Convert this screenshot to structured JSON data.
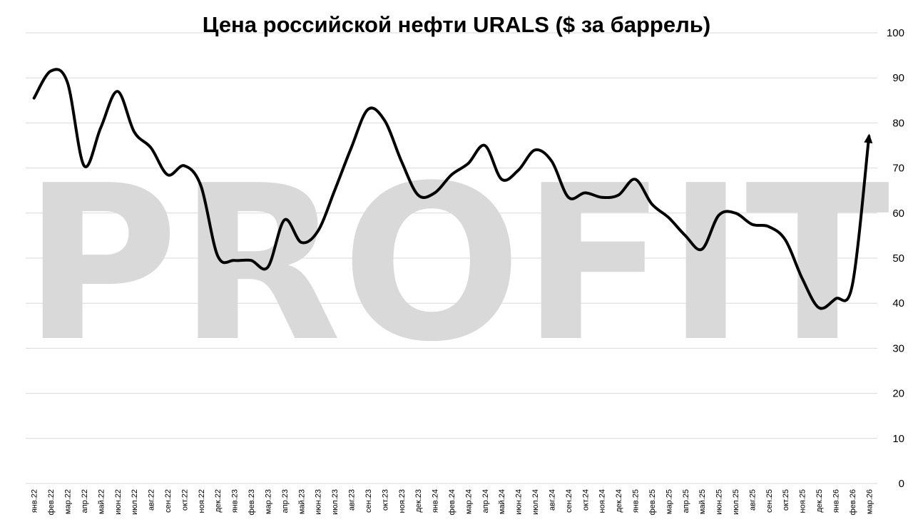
{
  "watermark_text": "PROFIT",
  "colors": {
    "line": "#000000",
    "grid": "#d9d9d9",
    "watermark": "#d9d9d9",
    "background": "#ffffff"
  },
  "chart_data": {
    "type": "line",
    "title": "Цена российской нефти URALS ($ за баррель)",
    "xlabel": "",
    "ylabel": "",
    "ylim": [
      0,
      100
    ],
    "yticks": [
      0,
      10,
      20,
      30,
      40,
      50,
      60,
      70,
      80,
      90,
      100
    ],
    "y_axis_side": "right",
    "grid": true,
    "legend": "none",
    "end_marker": "arrow",
    "categories": [
      "янв.22",
      "фев.22",
      "мар.22",
      "апр.22",
      "май.22",
      "июн.22",
      "июл.22",
      "авг.22",
      "сен.22",
      "окт.22",
      "ноя.22",
      "дек.22",
      "янв.23",
      "фев.23",
      "мар.23",
      "апр.23",
      "май.23",
      "июн.23",
      "июл.23",
      "авг.23",
      "сен.23",
      "окт.23",
      "ноя.23",
      "дек.23",
      "янв.24",
      "фев.24",
      "мар.24",
      "апр.24",
      "май.24",
      "июн.24",
      "июл.24",
      "авг.24",
      "сен.24",
      "окт.24",
      "ноя.24",
      "дек.24",
      "янв.25",
      "фев.25",
      "мар.25",
      "апр.25",
      "май.25",
      "июн.25",
      "июл.25",
      "авг.25",
      "сен.25",
      "окт.25",
      "ноя.25",
      "дек.25",
      "янв.26",
      "фев.26",
      "мар.26"
    ],
    "series": [
      {
        "values": [
          85.5,
          91.5,
          89,
          70.5,
          79,
          87,
          78,
          74.5,
          68.5,
          70.5,
          66,
          50.5,
          49.5,
          49.5,
          48,
          58.5,
          53.5,
          56,
          65,
          74.5,
          83,
          80.5,
          71.5,
          64,
          64.5,
          68.5,
          71,
          75,
          67.5,
          69.5,
          74,
          71.5,
          63.5,
          64.5,
          63.5,
          64,
          67.5,
          62,
          59,
          55,
          52,
          59.5,
          60,
          57.5,
          57,
          54,
          45.5,
          39,
          41,
          44,
          77
        ]
      }
    ]
  }
}
